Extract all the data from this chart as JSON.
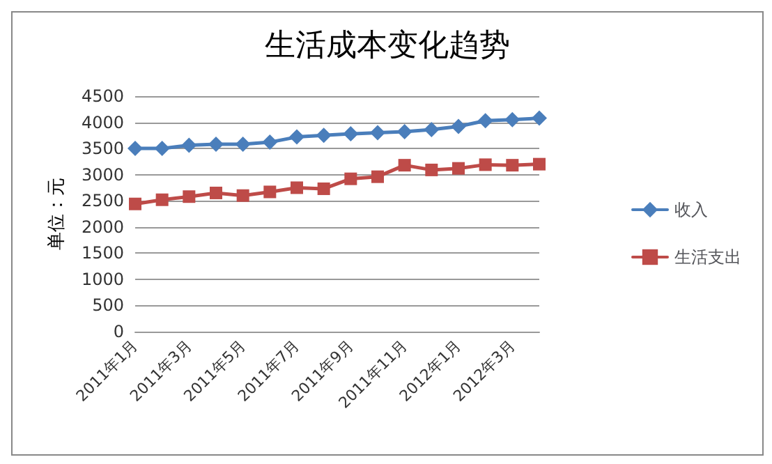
{
  "chart_data": {
    "type": "line",
    "title": "生活成本变化趋势",
    "ylabel": "单位：元",
    "categories": [
      "2011年1月",
      null,
      "2011年3月",
      null,
      "2011年5月",
      null,
      "2011年7月",
      null,
      "2011年9月",
      null,
      "2011年11月",
      null,
      "2012年1月",
      null,
      "2012年3月",
      null
    ],
    "series": [
      {
        "name": "收入",
        "color": "#4a7ebb",
        "marker": "diamond",
        "values": [
          3500,
          3500,
          3560,
          3580,
          3580,
          3620,
          3720,
          3750,
          3780,
          3800,
          3820,
          3860,
          3920,
          4030,
          4050,
          4080
        ]
      },
      {
        "name": "生活支出",
        "color": "#be4b48",
        "marker": "square",
        "values": [
          2440,
          2520,
          2580,
          2650,
          2600,
          2670,
          2750,
          2730,
          2920,
          2960,
          3180,
          3090,
          3120,
          3190,
          3180,
          3200
        ]
      }
    ],
    "ylim": [
      0,
      4500
    ],
    "yticks": [
      0,
      500,
      1000,
      1500,
      2000,
      2500,
      3000,
      3500,
      4000,
      4500
    ],
    "grid": "y",
    "legend": "right"
  }
}
